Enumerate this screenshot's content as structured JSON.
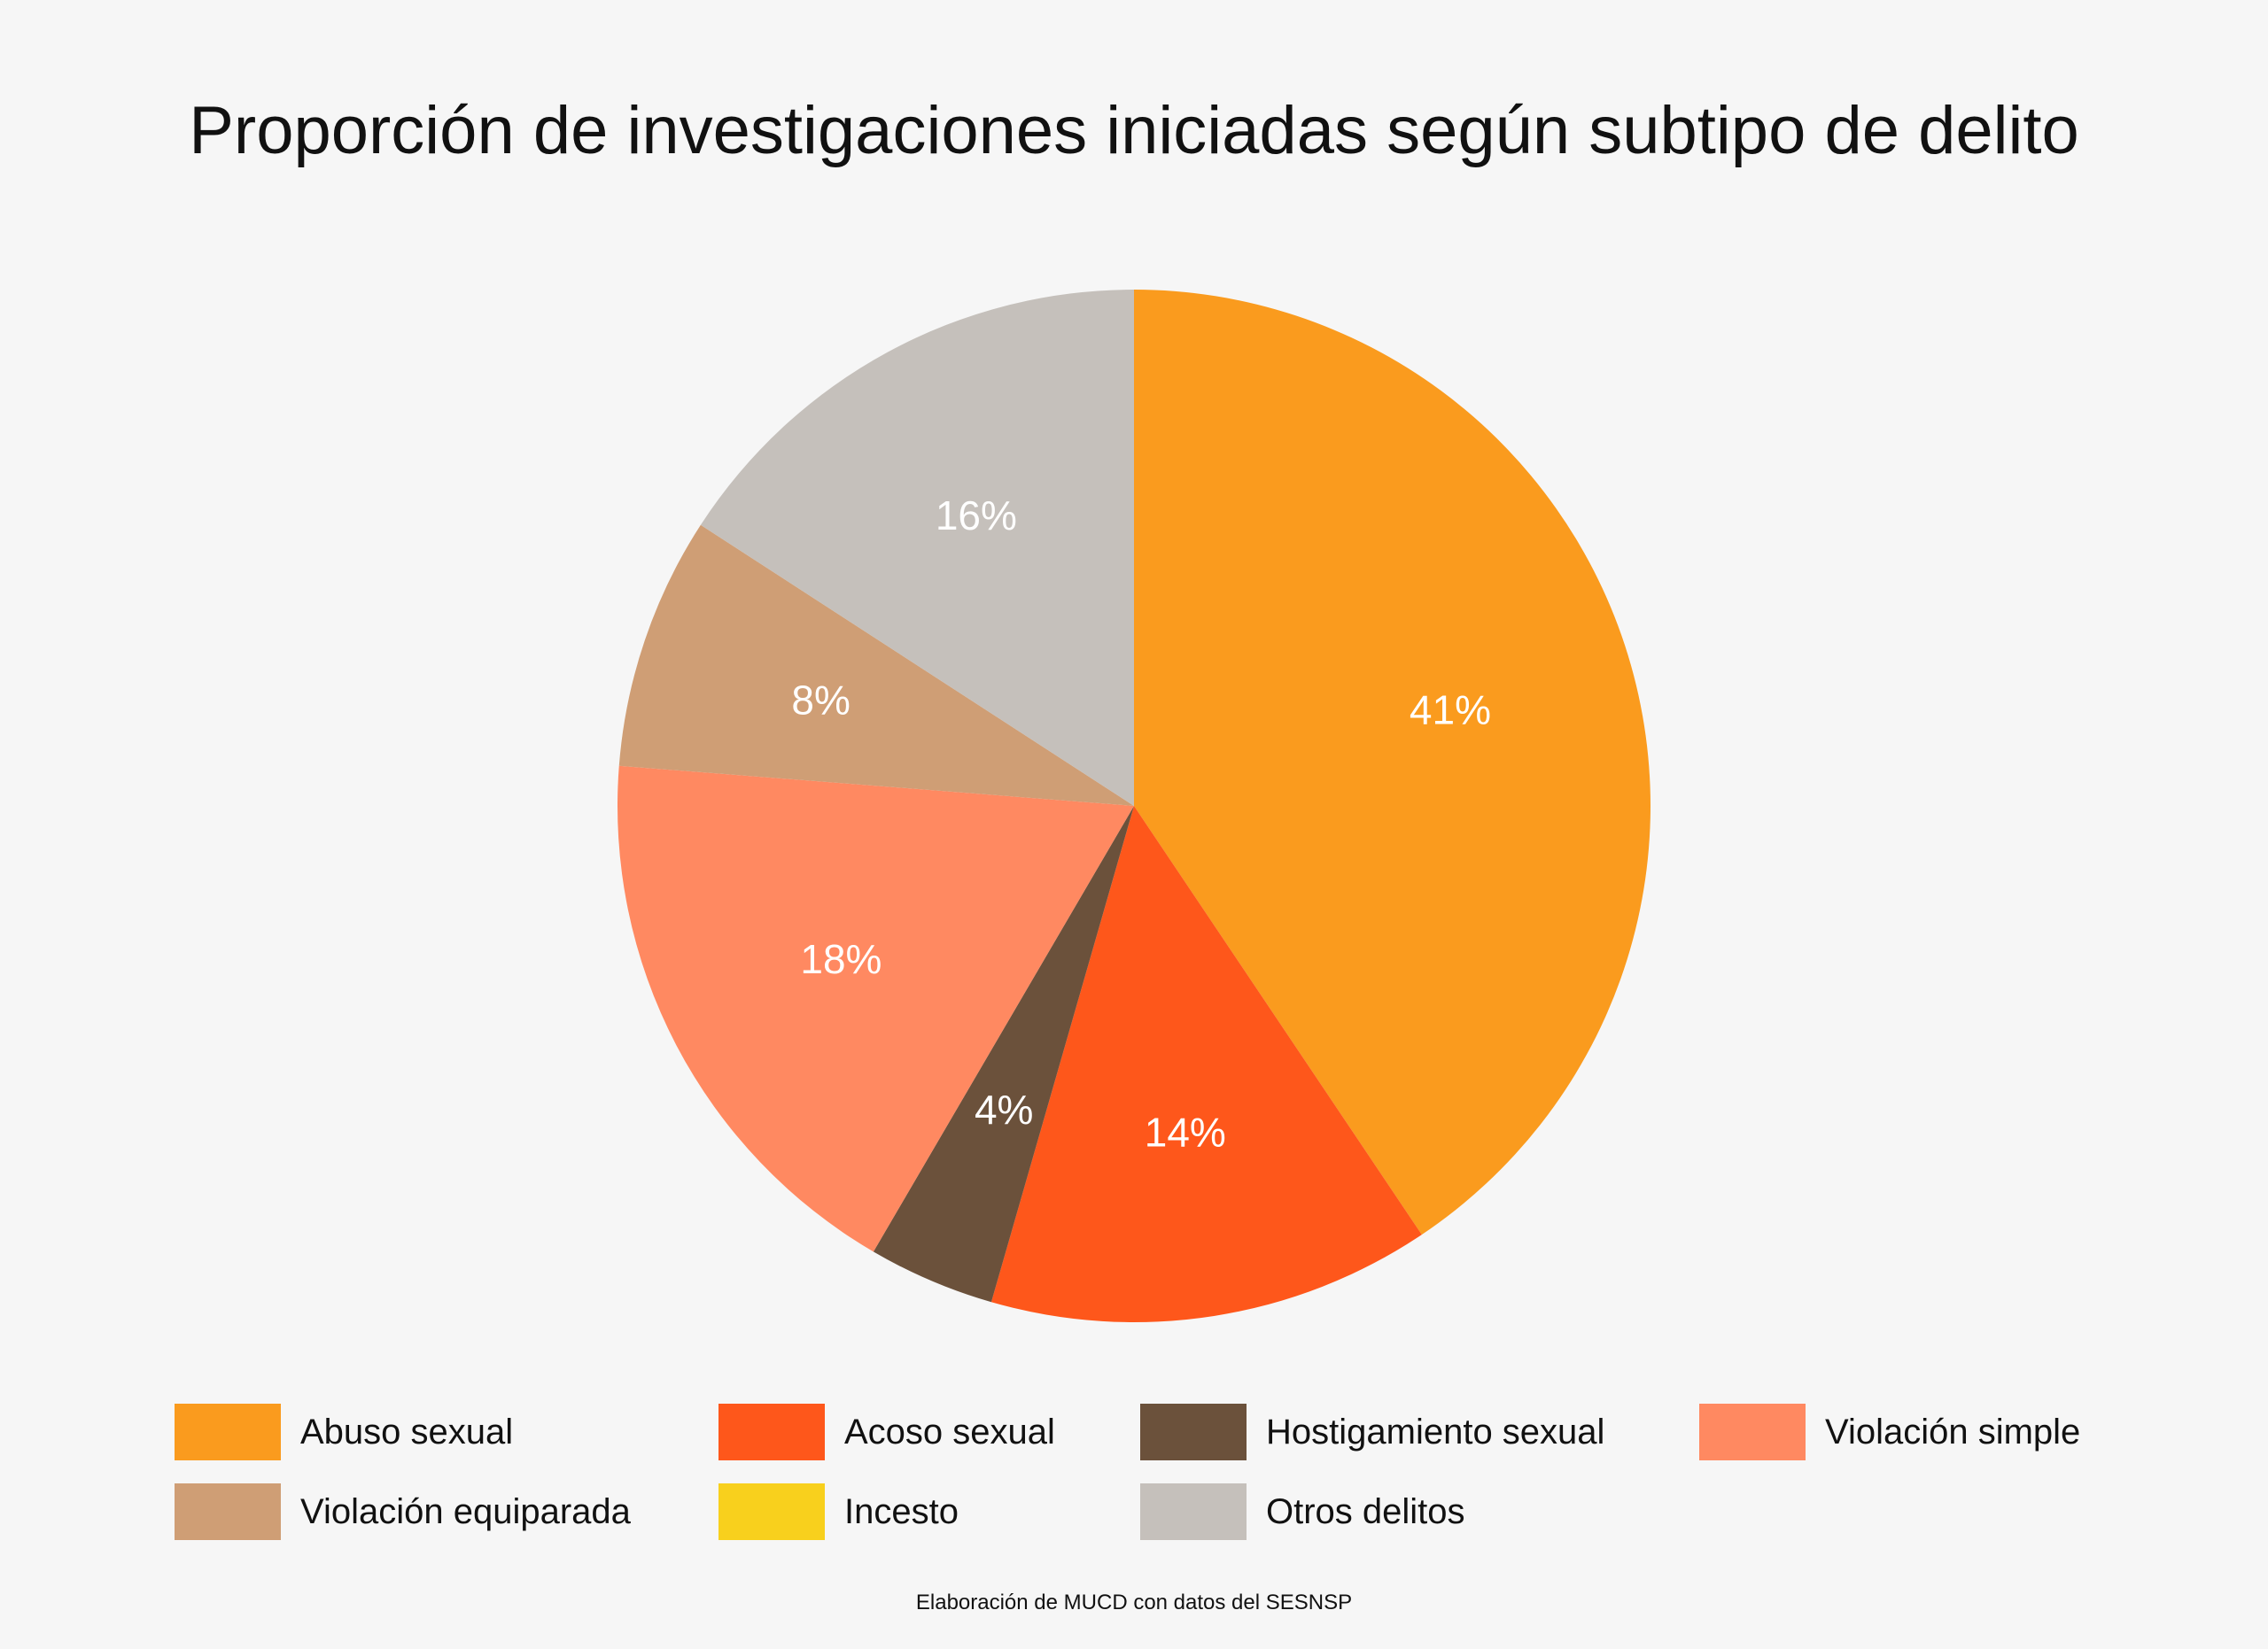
{
  "chart_data": {
    "type": "pie",
    "title": "Proporción de investigaciones iniciadas según subtipo de delito",
    "legend_position": "bottom",
    "slices": [
      {
        "name": "Abuso sexual",
        "value": 41,
        "label": "41%",
        "color": "#fa9b1e"
      },
      {
        "name": "Acoso sexual",
        "value": 14,
        "label": "14%",
        "color": "#fe571b"
      },
      {
        "name": "Hostigamiento sexual",
        "value": 4,
        "label": "4%",
        "color": "#6b513b"
      },
      {
        "name": "Violación simple",
        "value": 18,
        "label": "18%",
        "color": "#ff8961"
      },
      {
        "name": "Violación equiparada",
        "value": 8,
        "label": "8%",
        "color": "#cf9e75"
      },
      {
        "name": "Incesto",
        "value": 0,
        "label": "",
        "color": "#f8d01d"
      },
      {
        "name": "Otros delitos",
        "value": 16,
        "label": "16%",
        "color": "#c5c0bb"
      }
    ]
  },
  "footnote": "Elaboración de MUCD con datos del SESNSP"
}
